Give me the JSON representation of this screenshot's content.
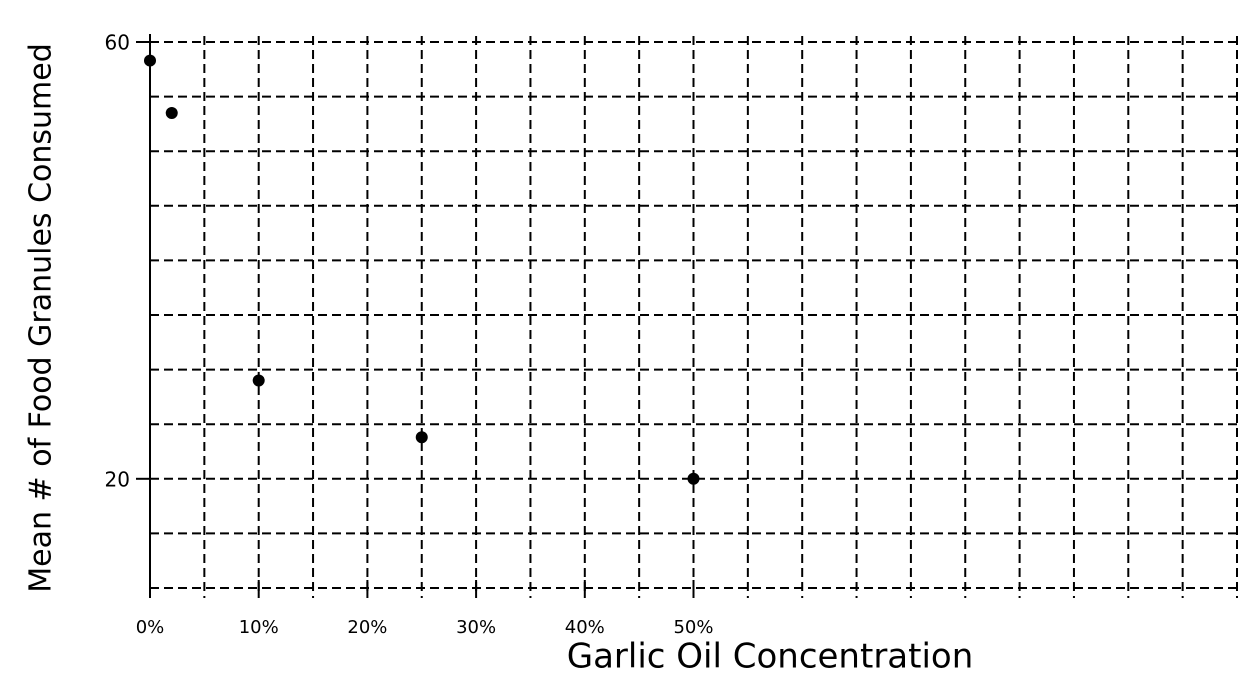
{
  "chart_data": {
    "type": "scatter",
    "x_label": "Garlic Oil Concentration",
    "y_label": "Mean # of Food Granules Consumed",
    "x": [
      0,
      2,
      10,
      25,
      50
    ],
    "values": [
      58.3,
      53.5,
      29,
      23.8,
      20
    ],
    "color": "#000000",
    "xlim": [
      0,
      100
    ],
    "ylim": [
      10,
      60
    ],
    "xticks": [
      {
        "value": 0,
        "label": "0%"
      },
      {
        "value": 10,
        "label": "10%"
      },
      {
        "value": 20,
        "label": "20%"
      },
      {
        "value": 30,
        "label": "30%"
      },
      {
        "value": 40,
        "label": "40%"
      },
      {
        "value": 50,
        "label": "50%"
      }
    ],
    "yticks": [
      60,
      20
    ],
    "xgrid": [
      0,
      5,
      10,
      15,
      20,
      25,
      30,
      35,
      40,
      45,
      50,
      55,
      60,
      65,
      70,
      75,
      80,
      85,
      90,
      95,
      100
    ],
    "ygrid": [
      10,
      15,
      20,
      25,
      30,
      35,
      40,
      45,
      50,
      55,
      60
    ]
  }
}
